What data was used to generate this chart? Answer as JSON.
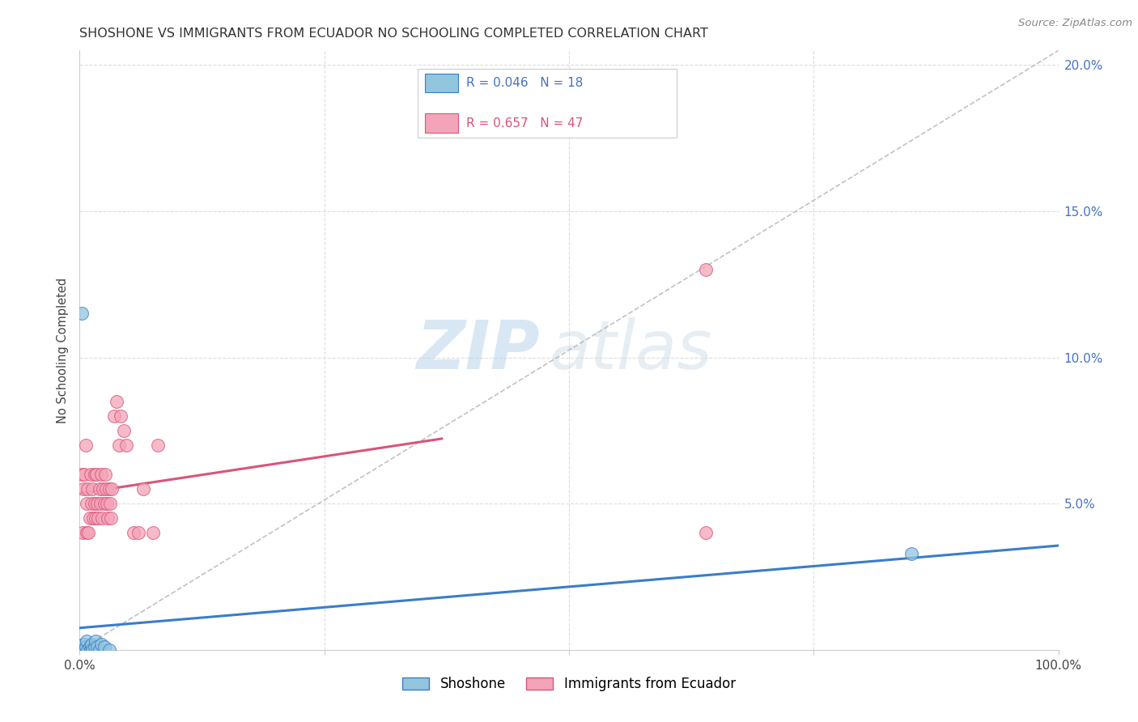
{
  "title": "SHOSHONE VS IMMIGRANTS FROM ECUADOR NO SCHOOLING COMPLETED CORRELATION CHART",
  "source": "Source: ZipAtlas.com",
  "ylabel": "No Schooling Completed",
  "xlim": [
    0,
    1.0
  ],
  "ylim": [
    0,
    0.205
  ],
  "yticks_right": [
    0.0,
    0.05,
    0.1,
    0.15,
    0.2
  ],
  "ytick_labels_right": [
    "",
    "5.0%",
    "10.0%",
    "15.0%",
    "20.0%"
  ],
  "legend_label1": "Shoshone",
  "legend_label2": "Immigrants from Ecuador",
  "R1": "0.046",
  "N1": "18",
  "R2": "0.657",
  "N2": "47",
  "color_shoshone": "#92c5de",
  "color_ecuador": "#f4a4b8",
  "color_line_shoshone": "#3a7dc9",
  "color_line_ecuador": "#d9547a",
  "color_diag": "#bbbbbb",
  "watermark_zip": "ZIP",
  "watermark_atlas": "atlas",
  "shoshone_x": [
    0.002,
    0.004,
    0.005,
    0.006,
    0.007,
    0.008,
    0.01,
    0.011,
    0.012,
    0.013,
    0.015,
    0.016,
    0.018,
    0.02,
    0.022,
    0.025,
    0.03,
    0.85
  ],
  "shoshone_y": [
    0.115,
    0.002,
    0.0,
    0.001,
    0.003,
    0.0,
    0.001,
    0.0,
    0.002,
    0.0,
    0.001,
    0.003,
    0.001,
    0.0,
    0.002,
    0.001,
    0.0,
    0.033
  ],
  "ecuador_x": [
    0.002,
    0.003,
    0.004,
    0.005,
    0.006,
    0.007,
    0.007,
    0.008,
    0.009,
    0.01,
    0.011,
    0.012,
    0.013,
    0.014,
    0.015,
    0.015,
    0.016,
    0.017,
    0.018,
    0.019,
    0.02,
    0.021,
    0.022,
    0.023,
    0.024,
    0.025,
    0.026,
    0.027,
    0.028,
    0.029,
    0.03,
    0.031,
    0.032,
    0.033,
    0.035,
    0.038,
    0.04,
    0.042,
    0.045,
    0.048,
    0.055,
    0.06,
    0.065,
    0.075,
    0.08,
    0.64,
    0.64
  ],
  "ecuador_y": [
    0.06,
    0.04,
    0.055,
    0.06,
    0.07,
    0.05,
    0.04,
    0.055,
    0.04,
    0.045,
    0.06,
    0.05,
    0.055,
    0.045,
    0.06,
    0.05,
    0.045,
    0.06,
    0.05,
    0.045,
    0.055,
    0.05,
    0.06,
    0.045,
    0.055,
    0.05,
    0.06,
    0.055,
    0.05,
    0.045,
    0.055,
    0.05,
    0.045,
    0.055,
    0.08,
    0.085,
    0.07,
    0.08,
    0.075,
    0.07,
    0.04,
    0.04,
    0.055,
    0.04,
    0.07,
    0.13,
    0.04
  ]
}
